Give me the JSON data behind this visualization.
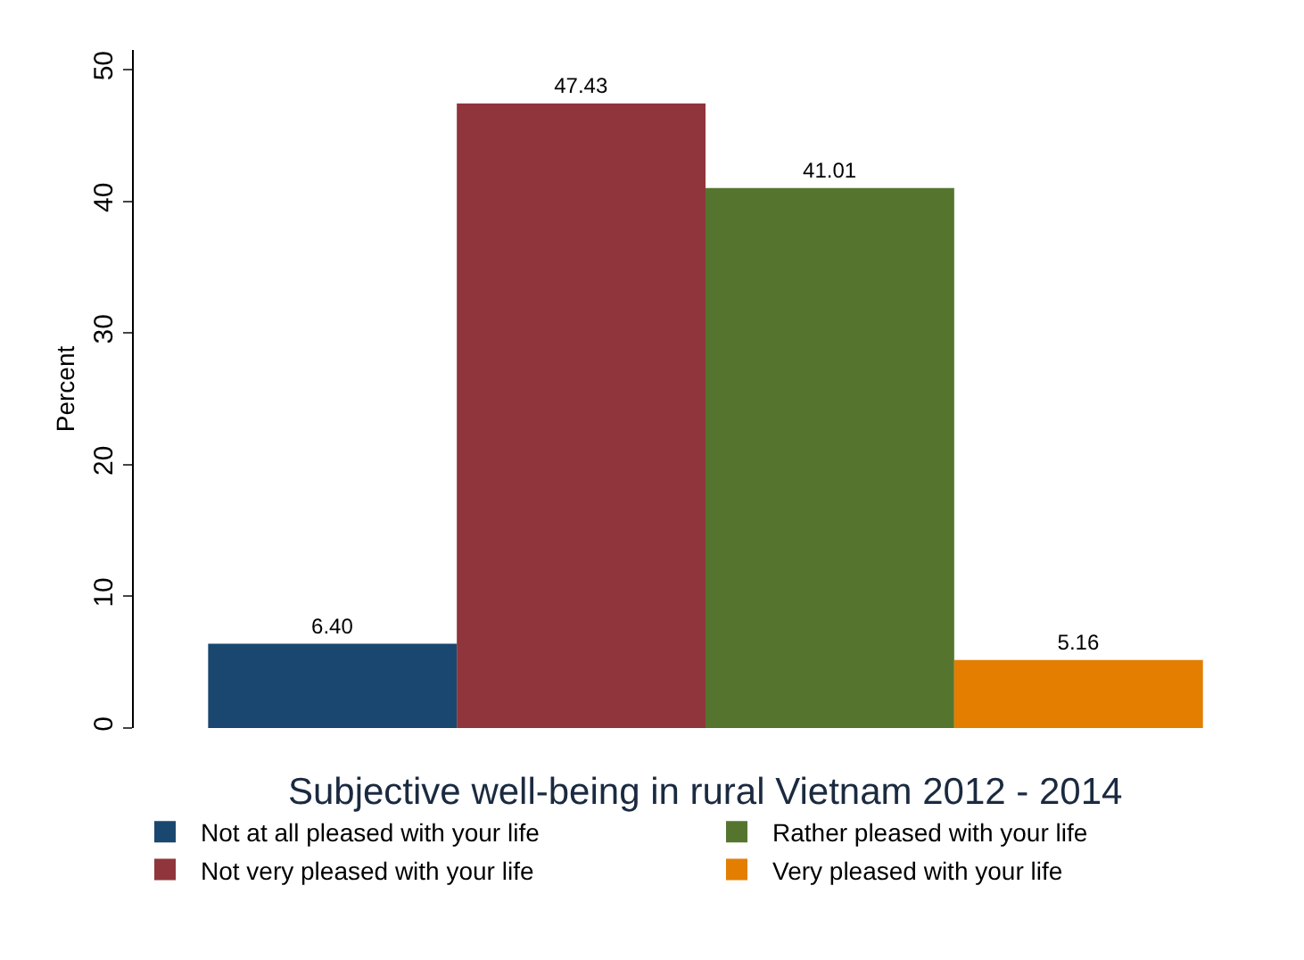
{
  "chart_data": {
    "type": "bar",
    "ylabel": "Percent",
    "legend_title": "Subjective well-being in rural Vietnam 2012 - 2014",
    "categories": [
      null
    ],
    "series": [
      {
        "name": "Not at all pleased with your life",
        "color": "#1a476f",
        "values": [
          6.4
        ],
        "value_labels": [
          "6.40"
        ]
      },
      {
        "name": "Not very pleased with your life",
        "color": "#90353b",
        "values": [
          47.43
        ],
        "value_labels": [
          "47.43"
        ]
      },
      {
        "name": "Rather pleased with your life",
        "color": "#55752f",
        "values": [
          41.01
        ],
        "value_labels": [
          "41.01"
        ]
      },
      {
        "name": "Very pleased with your life",
        "color": "#e37e00",
        "values": [
          5.16
        ],
        "value_labels": [
          "5.16"
        ]
      }
    ],
    "ylim": [
      0,
      51.5
    ],
    "yticks": [
      0,
      10,
      20,
      30,
      40,
      50
    ],
    "grid": false,
    "legend": "bottom"
  }
}
